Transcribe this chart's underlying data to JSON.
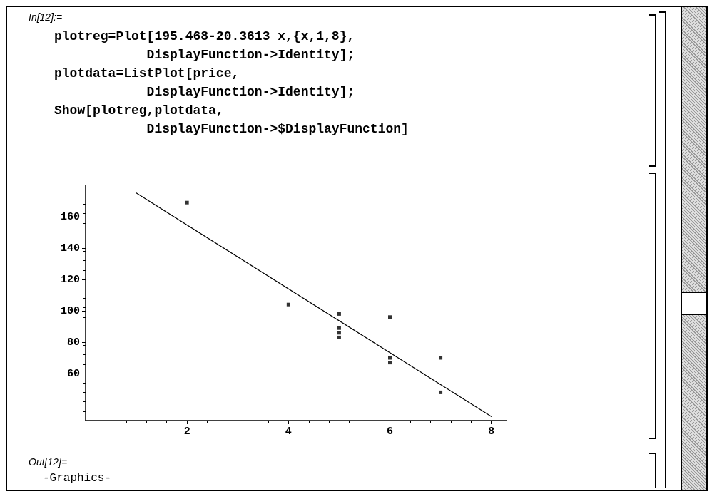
{
  "chart_data": {
    "type": "scatter",
    "annotations": [
      "In[12]:=",
      "plotreg=Plot[195.468-20.3613 x,{x,1,8},",
      "            DisplayFunction->Identity];",
      "plotdata=ListPlot[price,",
      "            DisplayFunction->Identity];",
      "Show[plotreg,plotdata,",
      "            DisplayFunction->$DisplayFunction]",
      "Out[12]=",
      "-Graphics-"
    ],
    "series": [
      {
        "type": "line",
        "color": "#000000",
        "x": [
          1,
          8
        ],
        "values": [
          175.1,
          32.6
        ],
        "marker": "none",
        "line_style": "solid"
      },
      {
        "color": "#000000",
        "x": [
          2,
          4,
          5,
          5,
          5,
          5,
          6,
          6,
          6,
          7,
          7
        ],
        "values": [
          169,
          104,
          98,
          89,
          86,
          83,
          96,
          70,
          67,
          70,
          48
        ],
        "marker": "square"
      }
    ],
    "xlim": [
      0,
      8.3
    ],
    "xticks": [
      2,
      4,
      6,
      8
    ],
    "ylim": [
      30,
      180
    ],
    "yticks": [
      60,
      80,
      100,
      120,
      140,
      160
    ],
    "grid": false
  }
}
